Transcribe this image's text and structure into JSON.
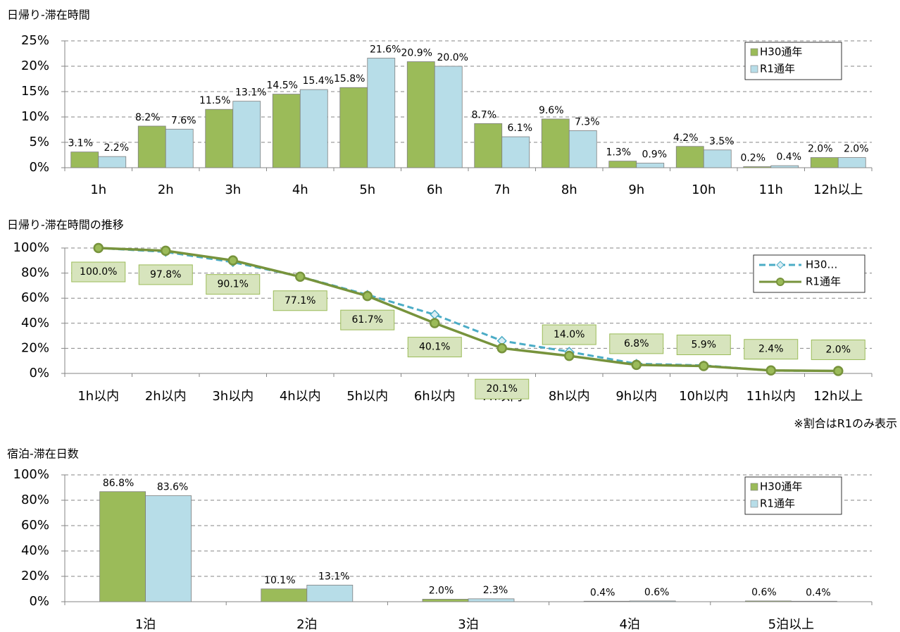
{
  "chart_data": [
    {
      "type": "bar",
      "title": "日帰り-滞在時間",
      "categories": [
        "1h",
        "2h",
        "3h",
        "4h",
        "5h",
        "6h",
        "7h",
        "8h",
        "9h",
        "10h",
        "11h",
        "12h以上"
      ],
      "series": [
        {
          "name": "H30通年",
          "color": "#9bbb59",
          "values": [
            3.1,
            8.2,
            11.5,
            14.5,
            15.8,
            20.9,
            8.7,
            9.6,
            1.3,
            4.2,
            0.2,
            2.0
          ],
          "value_labels": [
            "3.1%",
            "8.2%",
            "11.5%",
            "14.5%",
            "15.8%",
            "20.9%",
            "8.7%",
            "9.6%",
            "1.3%",
            "4.2%",
            "0.2%",
            "2.0%"
          ]
        },
        {
          "name": "R1通年",
          "color": "#b7dde8",
          "values": [
            2.2,
            7.6,
            13.1,
            15.4,
            21.6,
            20.0,
            6.1,
            7.3,
            0.9,
            3.5,
            0.4,
            2.0
          ],
          "value_labels": [
            "2.2%",
            "7.6%",
            "13.1%",
            "15.4%",
            "21.6%",
            "20.0%",
            "6.1%",
            "7.3%",
            "0.9%",
            "3.5%",
            "0.4%",
            "2.0%"
          ]
        }
      ],
      "ylim": [
        0,
        25
      ],
      "yticks": [
        {
          "value": 0,
          "label": "0%"
        },
        {
          "value": 5,
          "label": "5%"
        },
        {
          "value": 10,
          "label": "10%"
        },
        {
          "value": 15,
          "label": "15%"
        },
        {
          "value": 20,
          "label": "20%"
        },
        {
          "value": 25,
          "label": "25%"
        }
      ],
      "grid": true,
      "legend": "top-right"
    },
    {
      "type": "line",
      "title": "日帰り-滞在時間の推移",
      "categories": [
        "1h以内",
        "2h以内",
        "3h以内",
        "4h以内",
        "5h以内",
        "6h以内",
        "7h以内",
        "8h以内",
        "9h以内",
        "10h以内",
        "11h以内",
        "12h以上"
      ],
      "series": [
        {
          "name": "H30…",
          "color": "#4bacc6",
          "values": [
            100,
            96.9,
            88.7,
            77.2,
            62.7,
            46.9,
            26.0,
            17.3,
            7.7,
            6.4,
            2.2,
            2.0
          ]
        },
        {
          "name": "R1通年",
          "color": "#77933c",
          "values": [
            100,
            97.8,
            90.1,
            77.1,
            61.7,
            40.1,
            20.1,
            14.0,
            6.8,
            5.9,
            2.4,
            2.0
          ],
          "value_labels": [
            "100.0%",
            "97.8%",
            "90.1%",
            "77.1%",
            "61.7%",
            "40.1%",
            "20.1%",
            "14.0%",
            "6.8%",
            "5.9%",
            "2.4%",
            "2.0%"
          ]
        }
      ],
      "ylim": [
        0,
        100
      ],
      "yticks": [
        {
          "value": 0,
          "label": "0%"
        },
        {
          "value": 20,
          "label": "20%"
        },
        {
          "value": 40,
          "label": "40%"
        },
        {
          "value": 60,
          "label": "60%"
        },
        {
          "value": 80,
          "label": "80%"
        },
        {
          "value": 100,
          "label": "100%"
        }
      ],
      "grid": true,
      "legend": "top-right",
      "note": "※割合はR1のみ表示"
    },
    {
      "type": "bar",
      "title": "宿泊-滞在日数",
      "categories": [
        "1泊",
        "2泊",
        "3泊",
        "4泊",
        "5泊以上"
      ],
      "series": [
        {
          "name": "H30通年",
          "color": "#9bbb59",
          "values": [
            86.8,
            10.1,
            2.0,
            0.4,
            0.6
          ],
          "value_labels": [
            "86.8%",
            "10.1%",
            "2.0%",
            "0.4%",
            "0.6%"
          ]
        },
        {
          "name": "R1通年",
          "color": "#b7dde8",
          "values": [
            83.6,
            13.1,
            2.3,
            0.6,
            0.4
          ],
          "value_labels": [
            "83.6%",
            "13.1%",
            "2.3%",
            "0.6%",
            "0.4%"
          ]
        }
      ],
      "ylim": [
        0,
        100
      ],
      "yticks": [
        {
          "value": 0,
          "label": "0%"
        },
        {
          "value": 20,
          "label": "20%"
        },
        {
          "value": 40,
          "label": "40%"
        },
        {
          "value": 60,
          "label": "60%"
        },
        {
          "value": 80,
          "label": "80%"
        },
        {
          "value": 100,
          "label": "100%"
        }
      ],
      "grid": true,
      "legend": "top-right"
    }
  ]
}
